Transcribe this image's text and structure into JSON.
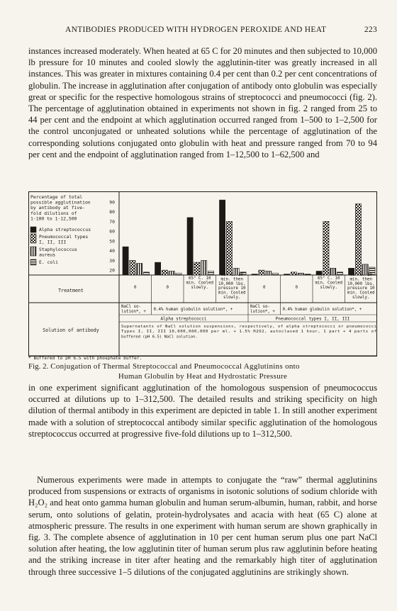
{
  "header": {
    "title": "ANTIBODIES PRODUCED WITH HYDROGEN PEROXIDE AND HEAT",
    "page": "223"
  },
  "para1": "instances increased moderately. When heated at 65 C for 20 minutes and then subjected to 10,000 lb pressure for 10 minutes and cooled slowly the agglutinin-titer was greatly increased in all instances. This was greater in mixtures containing 0.4 per cent than 0.2 per cent concentrations of globulin. The increase in agglutination after conjugation of antibody onto globulin was especially great or specific for the respective homologous strains of streptococci and pneumococci (fig. 2). The percentage of agglutination obtained in experiments not shown in fig. 2 ranged from 25 to 44 per cent and the endpoint at which agglutination occurred ranged from 1–500 to 1–2,500 for the control unconjugated or unheated solutions while the percentage of agglutination of the corresponding solutions conjugated onto globulin with heat and pressure ranged from 70 to 94 per cent and the endpoint of agglutination ranged from 1–12,500 to 1–62,500 and",
  "figure": {
    "legend": {
      "title": [
        "Percentage of total",
        "possible agglutination",
        "by antibody at five-",
        "fold dilutions of",
        "1-100 to 1-12,500"
      ],
      "items": [
        {
          "pattern": "solid",
          "label": [
            "Alpha streptococcus"
          ]
        },
        {
          "pattern": "check",
          "label": [
            "Pneumococcal types",
            "I, II, III"
          ]
        },
        {
          "pattern": "vstripe",
          "label": [
            "Staphylococcus",
            "aureus"
          ]
        },
        {
          "pattern": "hstripe",
          "label": [
            "E. coli"
          ]
        }
      ]
    },
    "y_ticks": [
      "90",
      "80",
      "70",
      "60",
      "50",
      "40",
      "30",
      "20"
    ],
    "treatment_label": "Treatment",
    "treatments": [
      [
        "0"
      ],
      [
        "0"
      ],
      [
        "65° C. 10",
        "min. Cooled",
        "slowly."
      ],
      [
        "65° C. 10",
        "min. then",
        "10,000 lbs.",
        "pressure 10",
        "min. Cooled",
        "slowly."
      ],
      [
        "0"
      ],
      [
        "0"
      ],
      [
        "65° C. 10",
        "min. Cooled",
        "slowly."
      ],
      [
        "65° C. 10",
        "min. then",
        "10,000 lbs.",
        "pressure 10",
        "min. Cooled",
        "slowly."
      ]
    ],
    "solution_label": "Solution of antibody",
    "solution_row1": [
      [
        "NaCl so-",
        "lution*, +"
      ],
      [
        "0.4% human globulin solution*, +"
      ],
      [
        "NaCl so-",
        "lution*, +"
      ],
      [
        "0.4% human globulin solution*, +"
      ]
    ],
    "solution_row2": [
      "Alpha streptococci",
      "Pneumococcal types I, II, III"
    ],
    "solution_row3": [
      "Supernatants of NaCl solution suspensions, respectively, of alpha streptococci or pneumococci",
      "Types I, II, III 10,000,000,000 per ml. + 1.5% H2O2, autoclaved 1 hour, 1 part + 4 parts of",
      "buffered (pH 6.5) NaCl solution."
    ],
    "footnote": "* Buffered to pH 6.5 with phosphate buffer.",
    "chart_data": {
      "type": "bar",
      "ylabel": "Percentage of total possible agglutination by antibody at five-fold dilutions of 1-100 to 1-12,500",
      "ylim": [
        15,
        95
      ],
      "group_count": 8,
      "series": [
        {
          "name": "Alpha streptococcus",
          "values": [
            44,
            28,
            74,
            92,
            16,
            16,
            19,
            22
          ]
        },
        {
          "name": "Pneumococcal types I, II, III",
          "values": [
            30,
            20,
            28,
            70,
            20,
            18,
            70,
            88
          ]
        },
        {
          "name": "Staphylococcus aureus",
          "values": [
            27,
            19,
            30,
            22,
            19,
            17,
            22,
            26
          ]
        },
        {
          "name": "E. coli",
          "values": [
            18,
            17,
            19,
            18,
            17,
            16,
            18,
            23
          ]
        }
      ]
    }
  },
  "caption": {
    "fig": "Fig. 2.",
    "line1": "Conjugation of Thermal Streptococcal and Pneumococcal Agglutinins onto",
    "line2": "Human Globulin by Heat and Hydrostatic Pressure"
  },
  "para2": "in one experiment significant agglutination of the homologous suspension of pneumococcus occurred at dilutions up to 1–312,500. The detailed results and striking specificity on high dilution of thermal antibody in this experiment are depicted in table 1. In still another experiment made with a solution of streptococcal antibody similar specific agglutination of the homologous streptococcus occurred at progressive five-fold dilutions up to 1–312,500.",
  "para3": "Numerous experiments were made in attempts to conjugate the “raw” thermal agglutinins produced from suspensions or extracts of organisms in isotonic solutions of sodium chloride with H₂O₂ and heat onto gamma human globulin and human serum-albumin, human, rabbit, and horse serum, onto solutions of gelatin, protein-hydrolysates and acacia with heat (65 C) alone at atmospheric pressure. The results in one experiment with human serum are shown graphically in fig. 3. The complete absence of agglutination in 10 per cent human serum plus one part NaCl solution after heating, the low agglutinin titer of human serum plus raw agglutinin before heating and the striking increase in titer after heating and the remarkably high titer of agglutination through three successive 1–5 dilutions of the conjugated agglutinins are strikingly shown."
}
